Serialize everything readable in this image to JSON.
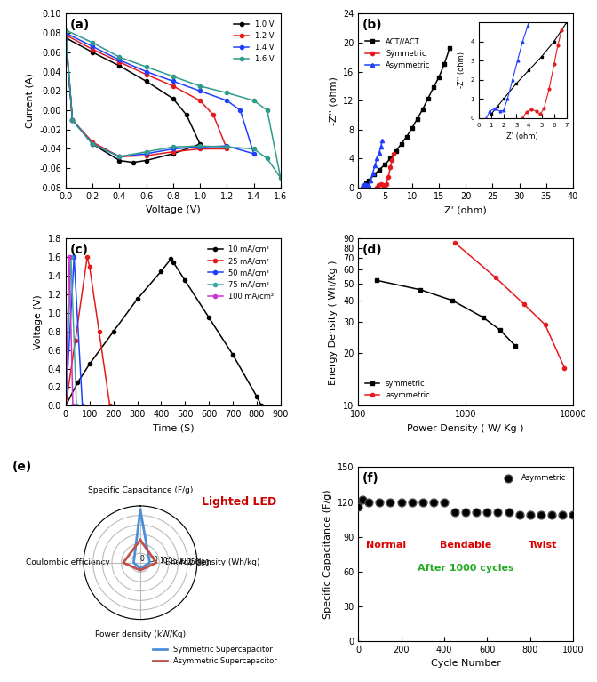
{
  "chart_data": [
    {
      "type": "line",
      "panel_label": "(a)",
      "x_label": "Voltage (V)",
      "y_label": "Current (A)",
      "xlim": [
        0,
        1.6
      ],
      "xticks": [
        0.0,
        0.2,
        0.4,
        0.6,
        0.8,
        1.0,
        1.2,
        1.4,
        1.6
      ],
      "ylim": [
        -0.08,
        0.1
      ],
      "yticks": [
        -0.08,
        -0.06,
        -0.04,
        -0.02,
        {
          "value": 0,
          "label": "0.00"
        },
        0.02,
        0.04,
        0.06,
        0.08,
        {
          "value": 0.1,
          "label": "0.10"
        }
      ],
      "legend": "upper right",
      "series": [
        {
          "name": "1.0 V",
          "color": "#000000",
          "marker": "o",
          "x": [
            0,
            0.2,
            0.4,
            0.6,
            0.8,
            0.9,
            1.0,
            0.8,
            0.6,
            0.5,
            0.4,
            0.2,
            0.05,
            0
          ],
          "values": [
            0.075,
            0.06,
            0.046,
            0.03,
            0.012,
            -0.005,
            -0.035,
            -0.045,
            -0.052,
            -0.054,
            -0.052,
            -0.035,
            -0.01,
            0.075
          ]
        },
        {
          "name": "1.2 V",
          "color": "#e41a1c",
          "marker": "o",
          "x": [
            0,
            0.2,
            0.4,
            0.6,
            0.8,
            1.0,
            1.1,
            1.2,
            1.0,
            0.8,
            0.6,
            0.4,
            0.2,
            0.05,
            0
          ],
          "values": [
            0.078,
            0.063,
            0.05,
            0.037,
            0.025,
            0.01,
            -0.005,
            -0.04,
            -0.04,
            -0.043,
            -0.047,
            -0.048,
            -0.033,
            -0.01,
            0.078
          ]
        },
        {
          "name": "1.4 V",
          "color": "#1f3fff",
          "marker": "o",
          "x": [
            0,
            0.2,
            0.4,
            0.6,
            0.8,
            1.0,
            1.2,
            1.3,
            1.4,
            1.2,
            1.0,
            0.8,
            0.6,
            0.4,
            0.2,
            0.05,
            0
          ],
          "values": [
            0.08,
            0.066,
            0.052,
            0.04,
            0.03,
            0.02,
            0.01,
            0.0,
            -0.045,
            -0.037,
            -0.038,
            -0.04,
            -0.045,
            -0.048,
            -0.035,
            -0.01,
            0.08
          ]
        },
        {
          "name": "1.6 V",
          "color": "#2e9a8a",
          "marker": "o",
          "x": [
            0,
            0.2,
            0.4,
            0.6,
            0.8,
            1.0,
            1.2,
            1.4,
            1.5,
            1.6,
            1.5,
            1.4,
            1.2,
            1.0,
            0.8,
            0.6,
            0.4,
            0.2,
            0.05,
            0
          ],
          "values": [
            0.083,
            0.07,
            0.055,
            0.045,
            0.035,
            0.025,
            0.018,
            0.01,
            0.0,
            -0.07,
            -0.05,
            -0.04,
            -0.038,
            -0.037,
            -0.038,
            -0.043,
            -0.048,
            -0.035,
            -0.01,
            0.083
          ]
        }
      ]
    },
    {
      "type": "line",
      "panel_label": "(b)",
      "x_label": "Z' (ohm)",
      "y_label": "-Z'' (ohm)",
      "xlim": [
        0,
        40
      ],
      "xticks": [
        0,
        5,
        10,
        15,
        20,
        25,
        30,
        35,
        40
      ],
      "ylim": [
        0,
        24
      ],
      "yticks": [
        0,
        4,
        8,
        12,
        16,
        20,
        24
      ],
      "legend": "upper left",
      "series": [
        {
          "name": "ACT//ACT",
          "color": "#000000",
          "marker": "s",
          "x": [
            1.0,
            1.5,
            2,
            3,
            4,
            5,
            6,
            7,
            8,
            9,
            10,
            11,
            12,
            13,
            14,
            15,
            16,
            17
          ],
          "values": [
            0.2,
            0.6,
            1.0,
            1.8,
            2.5,
            3.2,
            4.0,
            5.0,
            6.0,
            7.0,
            8.2,
            9.5,
            10.8,
            12.3,
            13.8,
            15.2,
            17,
            19.2
          ]
        },
        {
          "name": "Symmetric",
          "color": "#e41a1c",
          "marker": "o",
          "x": [
            3.5,
            3.8,
            4.2,
            4.6,
            4.9,
            5.2,
            5.6,
            6.0,
            6.3,
            6.6
          ],
          "values": [
            0,
            0.3,
            0.45,
            0.35,
            0.2,
            0.5,
            1.5,
            2.8,
            3.8,
            4.6
          ]
        },
        {
          "name": "Asymmetric",
          "color": "#1f3fff",
          "marker": "^",
          "x": [
            0.6,
            0.9,
            1.3,
            1.7,
            2.0,
            2.3,
            2.7,
            3.1,
            3.5,
            3.9,
            4.2,
            4.5
          ],
          "values": [
            0,
            0.35,
            0.5,
            0.35,
            0.4,
            1.0,
            2.0,
            3.0,
            4.0,
            4.8,
            5.6,
            6.5
          ]
        }
      ],
      "inset": {
        "x_label": "Z' (ohm)",
        "y_label": "-Z'' (ohm)",
        "xlim": [
          0,
          7
        ],
        "xticks": [
          0,
          1,
          2,
          3,
          4,
          5,
          6,
          7
        ],
        "ylim": [
          0,
          5
        ],
        "yticks": [
          0,
          1,
          2,
          3,
          4
        ]
      }
    },
    {
      "type": "line",
      "panel_label": "(c)",
      "x_label": "Time (S)",
      "y_label": "Voltage (V)",
      "xlim": [
        0,
        900
      ],
      "xticks": [
        0,
        100,
        200,
        300,
        400,
        500,
        600,
        700,
        800,
        900
      ],
      "ylim": [
        0,
        1.8
      ],
      "yticks": [
        0.0,
        0.2,
        0.4,
        0.6,
        0.8,
        1.0,
        1.2,
        1.4,
        1.6,
        1.8
      ],
      "legend": "upper right",
      "series": [
        {
          "name": "10 mA/cm²",
          "color": "#000000",
          "marker": "o",
          "x": [
            0,
            50,
            100,
            200,
            300,
            400,
            440,
            450,
            500,
            600,
            700,
            800,
            820
          ],
          "values": [
            0.0,
            0.25,
            0.45,
            0.8,
            1.15,
            1.45,
            1.58,
            1.55,
            1.35,
            0.95,
            0.55,
            0.1,
            0.0
          ]
        },
        {
          "name": "25 mA/cm²",
          "color": "#e41a1c",
          "marker": "o",
          "x": [
            0,
            40,
            90,
            100,
            140,
            185
          ],
          "values": [
            0,
            0.7,
            1.6,
            1.5,
            0.8,
            0
          ]
        },
        {
          "name": "50 mA/cm²",
          "color": "#1f3fff",
          "marker": "o",
          "x": [
            0,
            35,
            70
          ],
          "values": [
            0,
            1.6,
            0
          ]
        },
        {
          "name": "75 mA/cm²",
          "color": "#3aa8a0",
          "marker": "o",
          "x": [
            0,
            22,
            45
          ],
          "values": [
            0,
            1.6,
            0
          ]
        },
        {
          "name": "100 mA/cm²",
          "color": "#cc33cc",
          "marker": "o",
          "x": [
            0,
            15,
            30
          ],
          "values": [
            0,
            1.6,
            0
          ]
        }
      ]
    },
    {
      "type": "line",
      "panel_label": "(d)",
      "x_label": "Power Density ( W/ Kg )",
      "y_label": "Energy Density ( Wh/Kg )",
      "log": true,
      "xlim": [
        100,
        10000
      ],
      "xticks": [
        100,
        1000,
        10000
      ],
      "ylim": [
        10,
        90
      ],
      "yticks": [
        10,
        20,
        30,
        40,
        50,
        60,
        70,
        80,
        90
      ],
      "legend": "lower left",
      "series": [
        {
          "name": "symmetric",
          "color": "#000000",
          "marker": "s",
          "x": [
            150,
            380,
            750,
            1450,
            2100,
            2900
          ],
          "values": [
            52,
            46,
            40,
            32,
            27,
            22
          ]
        },
        {
          "name": "asymmetric",
          "color": "#e41a1c",
          "marker": "o",
          "x": [
            800,
            1900,
            3500,
            5500,
            8300
          ],
          "values": [
            85,
            54,
            38,
            29,
            16.5
          ]
        }
      ]
    },
    {
      "type": "radar",
      "panel_label": "(e)",
      "categories": [
        "Specific Capacitance (F/g)",
        "Energy density (Wh/kg)",
        "Power density (kW/Kg)",
        "Coulombic efficiency"
      ],
      "ylim": [
        0,
        300
      ],
      "yticks": [
        0,
        50,
        100,
        150,
        200,
        250,
        300
      ],
      "grid": true,
      "legend": "lower right",
      "annotations": [
        "Lighted LED"
      ],
      "series": [
        {
          "name": "Symmetric Supercapacitor",
          "color": "#4a90d9",
          "values": [
            280,
            50,
            30,
            35
          ]
        },
        {
          "name": "Asymmetric Supercapacitor",
          "color": "#c0504d",
          "values": [
            120,
            85,
            40,
            90
          ]
        }
      ]
    },
    {
      "type": "scatter",
      "panel_label": "(f)",
      "x_label": "Cycle Number",
      "y_label": "Specific Capacitance (F/g)",
      "xlim": [
        0,
        1000
      ],
      "xticks": [
        0,
        200,
        400,
        600,
        800,
        1000
      ],
      "ylim": [
        0,
        150
      ],
      "yticks": [
        0,
        30,
        60,
        90,
        120,
        150
      ],
      "legend": "upper right",
      "annotations": [
        "Normal",
        "Bendable",
        "Twist",
        "After 1000 cycles"
      ],
      "series": [
        {
          "name": "Asymmetric",
          "color": "#000000",
          "marker": "o",
          "x": [
            0,
            20,
            50,
            100,
            150,
            200,
            250,
            300,
            350,
            400,
            450,
            500,
            550,
            600,
            650,
            700,
            750,
            800,
            850,
            900,
            950,
            1000
          ],
          "values": [
            116,
            122,
            120,
            120,
            120,
            120,
            120,
            120,
            120,
            120,
            111,
            111,
            111,
            111,
            111,
            111,
            109,
            109,
            109,
            109,
            109,
            109
          ]
        }
      ]
    }
  ]
}
